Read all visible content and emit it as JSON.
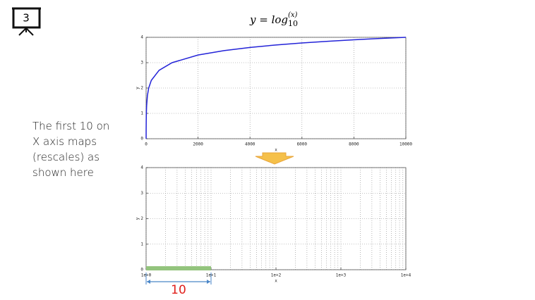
{
  "slide": {
    "number": "3",
    "note": [
      "The first 10 on",
      "X axis maps",
      "(rescales) as",
      "shown here"
    ]
  },
  "chart_data": [
    {
      "type": "line",
      "title": "y = log",
      "title_sub": "10",
      "title_sup": "(x)",
      "xlabel": "x",
      "ylabel": "y",
      "color": "#2323d8",
      "grid": true,
      "x": [
        1,
        2,
        5,
        10,
        20,
        50,
        100,
        200,
        500,
        1000,
        2000,
        3000,
        4000,
        5000,
        6000,
        7000,
        8000,
        9000,
        10000
      ],
      "values": [
        0,
        0.301,
        0.699,
        1,
        1.301,
        1.699,
        2,
        2.301,
        2.699,
        3,
        3.301,
        3.477,
        3.602,
        3.699,
        3.778,
        3.845,
        3.903,
        3.954,
        4
      ],
      "xlim": [
        0,
        10000
      ],
      "xticks": [
        0,
        2000,
        4000,
        6000,
        8000,
        10000
      ],
      "ylim": [
        0,
        4
      ],
      "yticks": [
        0,
        1,
        2,
        3,
        4
      ]
    },
    {
      "type": "span",
      "xlabel": "x",
      "ylabel": "y",
      "grid": true,
      "log_x": true,
      "xlim": [
        1,
        10000
      ],
      "xticks": [
        {
          "value": 1,
          "label": "1e+0"
        },
        {
          "value": 10,
          "label": "1e+1"
        },
        {
          "value": 100,
          "label": "1e+2"
        },
        {
          "value": 1000,
          "label": "1e+3"
        },
        {
          "value": 10000,
          "label": "1e+4"
        }
      ],
      "xticks_minor": [
        2,
        3,
        4,
        5,
        6,
        7,
        8,
        9,
        20,
        30,
        40,
        50,
        60,
        70,
        80,
        90,
        200,
        300,
        400,
        500,
        600,
        700,
        800,
        900,
        2000,
        3000,
        4000,
        5000,
        6000,
        7000,
        8000,
        9000
      ],
      "ylim": [
        0,
        4
      ],
      "yticks": [
        0,
        1,
        2,
        3,
        4
      ],
      "span": [
        1,
        10
      ],
      "color": "#93c47d",
      "annotation": "10",
      "annotation_color": "#e0201b",
      "arrow_color": "#4a86c8"
    }
  ]
}
